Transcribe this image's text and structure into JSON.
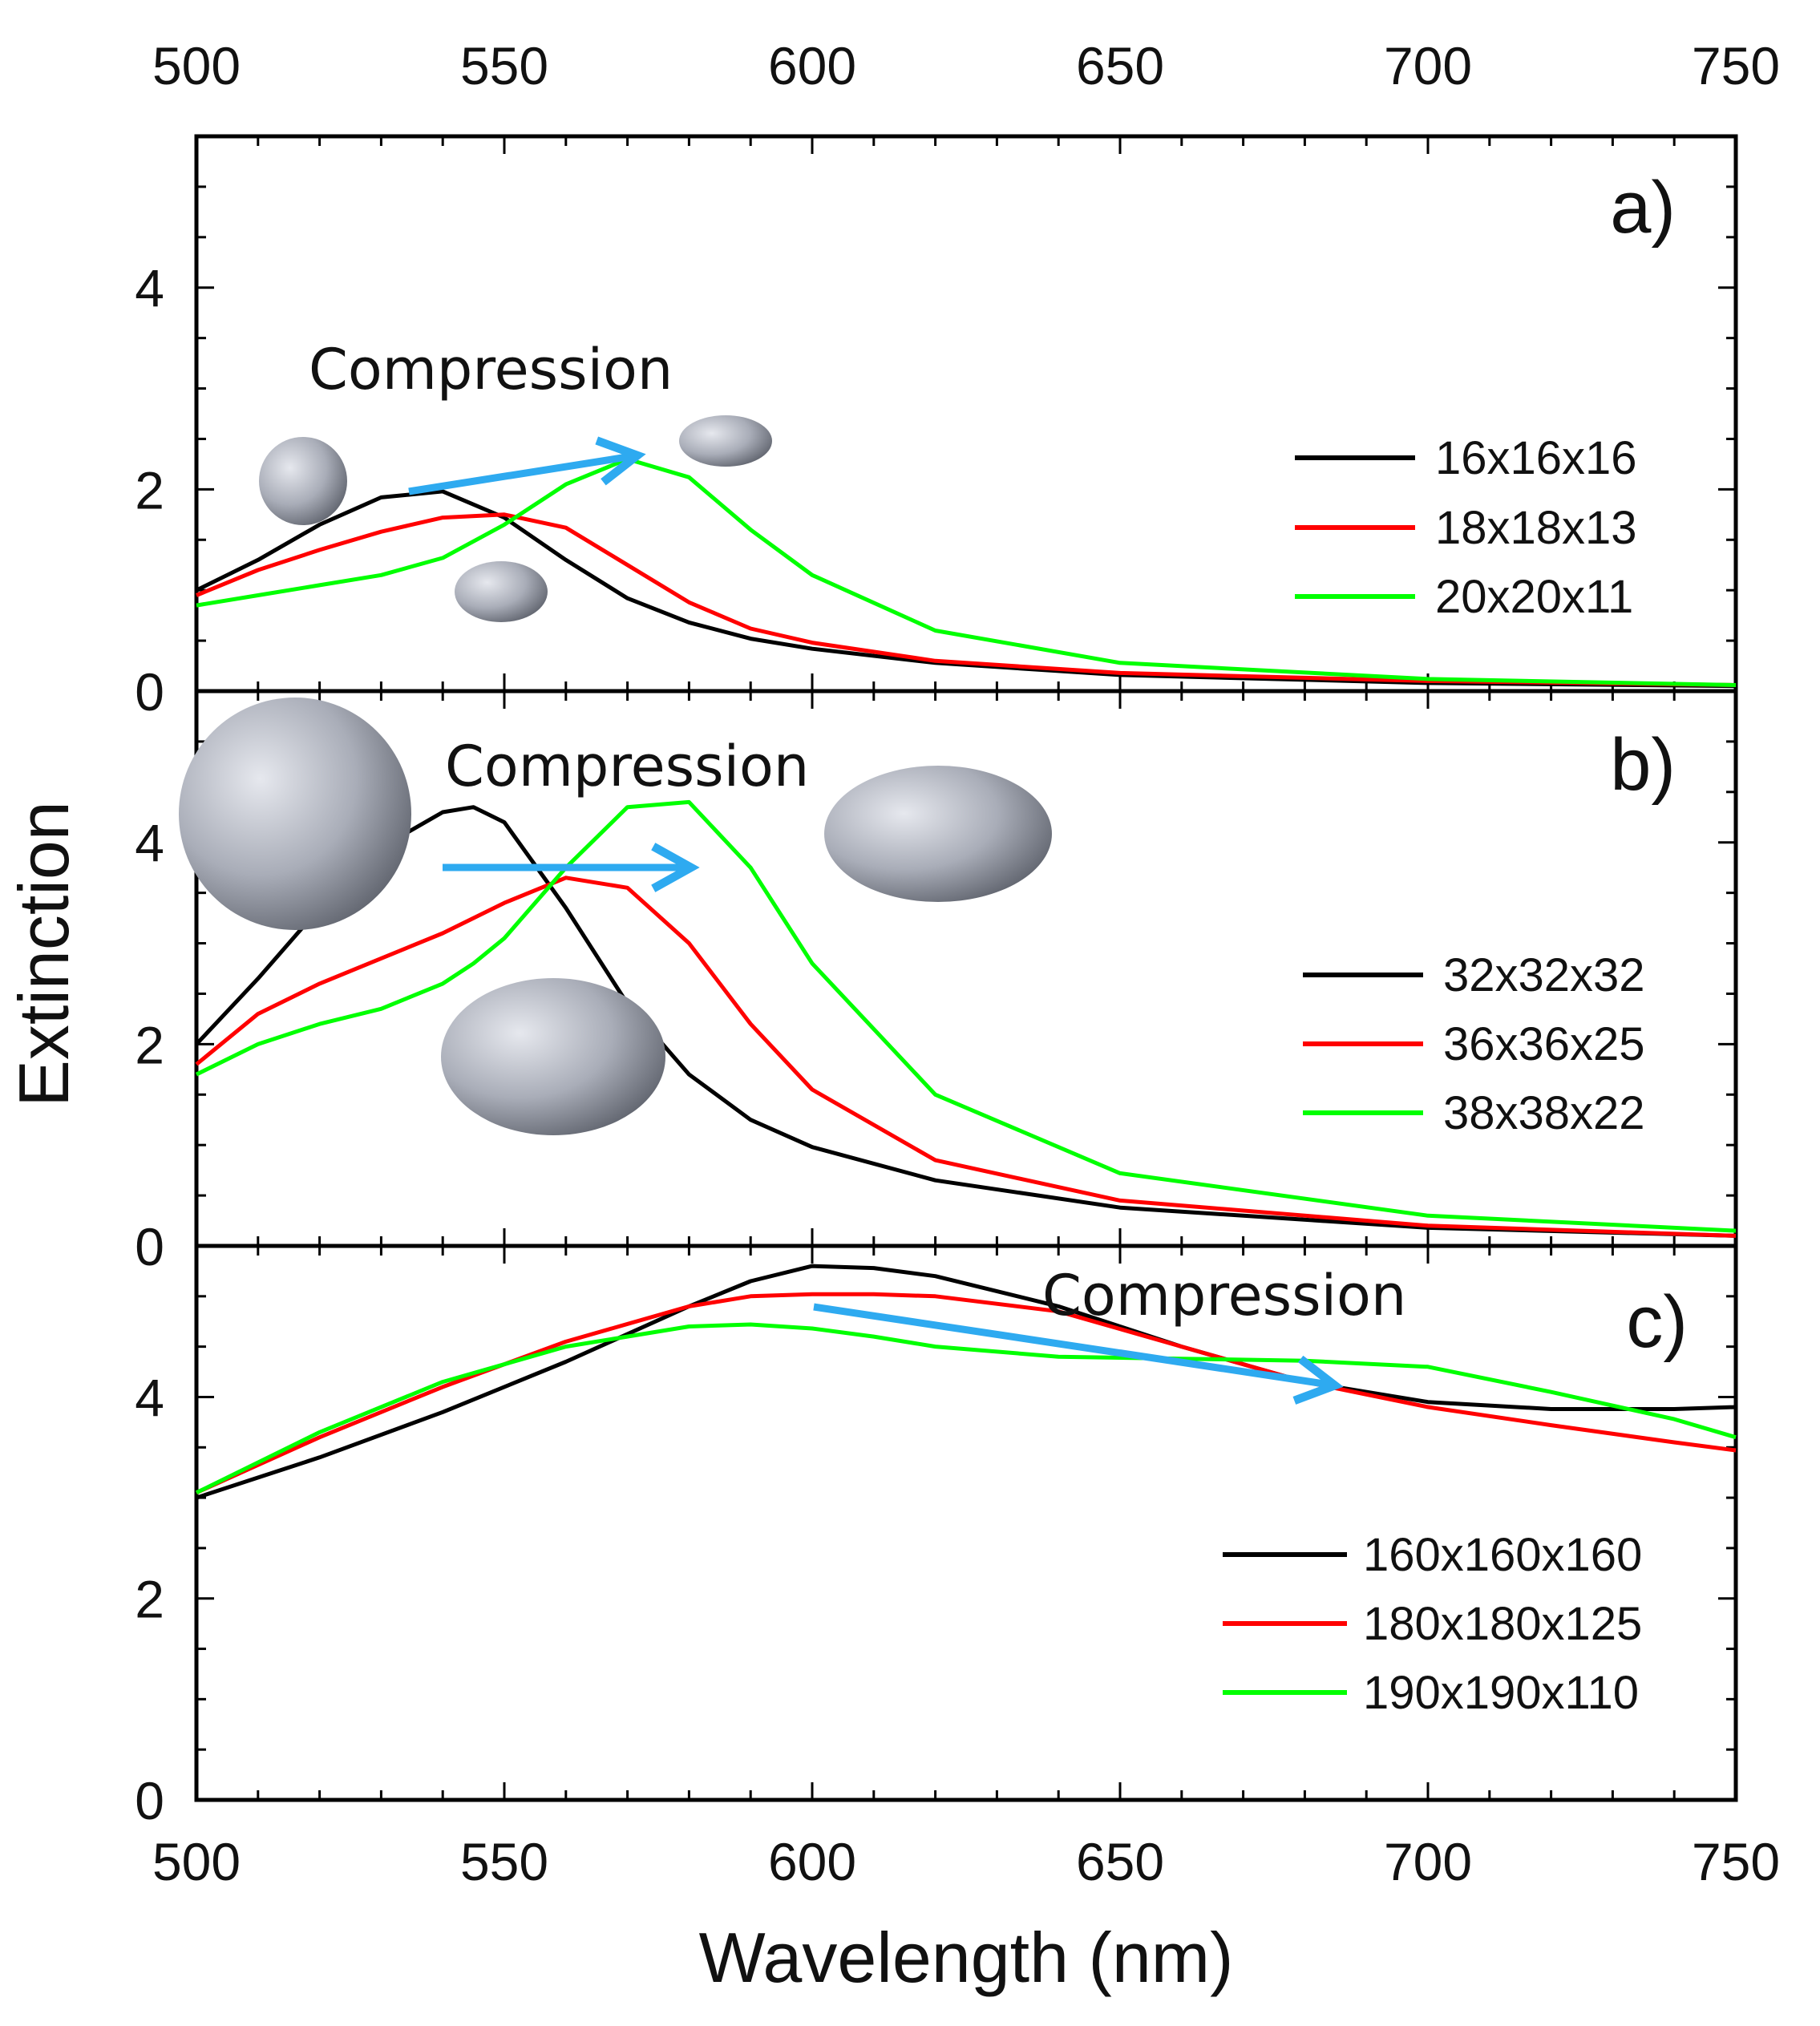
{
  "x_axis": {
    "label": "Wavelength (nm)",
    "range": [
      500,
      750
    ],
    "ticks": [
      500,
      550,
      600,
      650,
      700,
      750
    ]
  },
  "y_axis": {
    "label": "Extinction"
  },
  "chart_data": [
    {
      "type": "line",
      "panel_label": "a)",
      "annotation": "Compression",
      "ylim": [
        0,
        5.5
      ],
      "yticks": [
        0,
        2,
        4
      ],
      "legend_placement": "right",
      "x": [
        500,
        510,
        520,
        530,
        540,
        550,
        560,
        570,
        580,
        590,
        600,
        620,
        650,
        700,
        750
      ],
      "series": [
        {
          "name": "16x16x16",
          "color": "#000000",
          "values": [
            1.0,
            1.3,
            1.65,
            1.92,
            1.98,
            1.72,
            1.3,
            0.92,
            0.68,
            0.52,
            0.42,
            0.28,
            0.16,
            0.08,
            0.05
          ]
        },
        {
          "name": "18x18x13",
          "color": "#ff0000",
          "values": [
            0.95,
            1.2,
            1.4,
            1.58,
            1.72,
            1.75,
            1.62,
            1.25,
            0.88,
            0.62,
            0.48,
            0.3,
            0.18,
            0.1,
            0.06
          ]
        },
        {
          "name": "20x20x11",
          "color": "#00ff00",
          "values": [
            0.85,
            0.95,
            1.05,
            1.15,
            1.32,
            1.65,
            2.05,
            2.3,
            2.12,
            1.6,
            1.15,
            0.6,
            0.28,
            0.12,
            0.06
          ]
        }
      ]
    },
    {
      "type": "line",
      "panel_label": "b)",
      "annotation": "Compression",
      "ylim": [
        0,
        5.5
      ],
      "yticks": [
        0,
        2,
        4
      ],
      "legend_placement": "right",
      "x": [
        500,
        510,
        520,
        530,
        540,
        545,
        550,
        560,
        570,
        580,
        590,
        600,
        620,
        650,
        700,
        750
      ],
      "series": [
        {
          "name": "32x32x32",
          "color": "#000000",
          "values": [
            2.0,
            2.65,
            3.35,
            3.95,
            4.3,
            4.35,
            4.2,
            3.35,
            2.4,
            1.7,
            1.25,
            0.98,
            0.65,
            0.38,
            0.18,
            0.1
          ]
        },
        {
          "name": "36x36x25",
          "color": "#ff0000",
          "values": [
            1.8,
            2.3,
            2.6,
            2.85,
            3.1,
            3.25,
            3.4,
            3.65,
            3.55,
            3.0,
            2.2,
            1.55,
            0.85,
            0.45,
            0.2,
            0.1
          ]
        },
        {
          "name": "38x38x22",
          "color": "#00ff00",
          "values": [
            1.7,
            2.0,
            2.2,
            2.35,
            2.6,
            2.8,
            3.05,
            3.75,
            4.35,
            4.4,
            3.75,
            2.8,
            1.5,
            0.72,
            0.3,
            0.15
          ]
        }
      ]
    },
    {
      "type": "line",
      "panel_label": "c)",
      "annotation": "Compression",
      "ylim": [
        0,
        5.5
      ],
      "yticks": [
        0,
        2,
        4
      ],
      "legend_placement": "right",
      "x": [
        500,
        520,
        540,
        560,
        580,
        590,
        600,
        610,
        620,
        640,
        660,
        680,
        700,
        720,
        740,
        750
      ],
      "series": [
        {
          "name": "160x160x160",
          "color": "#000000",
          "values": [
            3.0,
            3.4,
            3.85,
            4.35,
            4.9,
            5.15,
            5.3,
            5.28,
            5.2,
            4.9,
            4.5,
            4.15,
            3.95,
            3.88,
            3.88,
            3.9
          ]
        },
        {
          "name": "180x180x125",
          "color": "#ff0000",
          "values": [
            3.05,
            3.6,
            4.1,
            4.55,
            4.9,
            5.0,
            5.02,
            5.02,
            5.0,
            4.85,
            4.5,
            4.15,
            3.9,
            3.72,
            3.55,
            3.47
          ]
        },
        {
          "name": "190x190x110",
          "color": "#00ff00",
          "values": [
            3.05,
            3.65,
            4.15,
            4.5,
            4.7,
            4.72,
            4.68,
            4.6,
            4.5,
            4.4,
            4.38,
            4.36,
            4.3,
            4.05,
            3.78,
            3.6
          ]
        }
      ]
    }
  ]
}
